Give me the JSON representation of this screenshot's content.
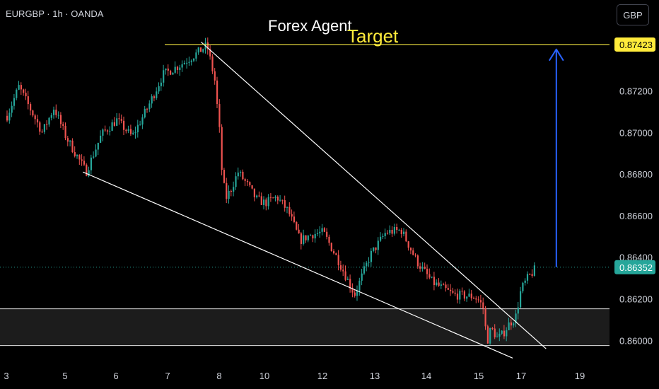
{
  "header": {
    "symbol_info": "EURGBP · 1h · OANDA",
    "currency_button": "GBP"
  },
  "annotations": {
    "brand_text": "Forex Agent",
    "target_text": "Target"
  },
  "colors": {
    "background": "#000000",
    "up_candle": "#26a69a",
    "down_candle": "#ef5350",
    "trendline": "#ffffff",
    "target_line": "#f5e642",
    "target_arrow": "#2962ff",
    "label_target_bg": "#ffeb3b",
    "label_price_bg": "#26a69a"
  },
  "chart_data": {
    "type": "candlestick",
    "title": "",
    "symbol": "EURGBP",
    "timeframe": "1h",
    "source": "OANDA",
    "y_unit": "GBP",
    "y_ticks": [
      0.86,
      0.862,
      0.864,
      0.866,
      0.868,
      0.87,
      0.872
    ],
    "y_tick_labels": [
      "0.86000",
      "0.86200",
      "0.86400",
      "0.86600",
      "0.86800",
      "0.87000",
      "0.87200"
    ],
    "x_tick_labels": [
      "3",
      "5",
      "6",
      "7",
      "8",
      "10",
      "12",
      "13",
      "14",
      "15",
      "17",
      "19"
    ],
    "ylim": [
      0.8588,
      0.8755
    ],
    "current_price": 0.86352,
    "current_price_label": "0.86352",
    "target_price": 0.87423,
    "target_price_label": "0.87423",
    "support_zone": {
      "low": 0.85975,
      "high": 0.86152
    },
    "price_path": [
      {
        "x": 3.0,
        "price": 0.8708
      },
      {
        "x": 3.4,
        "price": 0.8722
      },
      {
        "x": 3.8,
        "price": 0.8711
      },
      {
        "x": 4.2,
        "price": 0.87
      },
      {
        "x": 4.6,
        "price": 0.8712
      },
      {
        "x": 5.0,
        "price": 0.8698
      },
      {
        "x": 5.4,
        "price": 0.8681
      },
      {
        "x": 5.7,
        "price": 0.8699
      },
      {
        "x": 6.0,
        "price": 0.8706
      },
      {
        "x": 6.3,
        "price": 0.8698
      },
      {
        "x": 6.6,
        "price": 0.8712
      },
      {
        "x": 6.9,
        "price": 0.8728
      },
      {
        "x": 7.2,
        "price": 0.8732
      },
      {
        "x": 7.55,
        "price": 0.8738
      },
      {
        "x": 7.75,
        "price": 0.8742
      },
      {
        "x": 7.9,
        "price": 0.8725
      },
      {
        "x": 8.05,
        "price": 0.8685
      },
      {
        "x": 8.25,
        "price": 0.8668
      },
      {
        "x": 8.5,
        "price": 0.8673
      },
      {
        "x": 8.8,
        "price": 0.8681
      },
      {
        "x": 9.2,
        "price": 0.8675
      },
      {
        "x": 9.6,
        "price": 0.8668
      },
      {
        "x": 10.0,
        "price": 0.8666
      },
      {
        "x": 10.4,
        "price": 0.8669
      },
      {
        "x": 10.8,
        "price": 0.8662
      },
      {
        "x": 11.2,
        "price": 0.8648
      },
      {
        "x": 11.6,
        "price": 0.8651
      },
      {
        "x": 12.0,
        "price": 0.8652
      },
      {
        "x": 12.3,
        "price": 0.8638
      },
      {
        "x": 12.6,
        "price": 0.8622
      },
      {
        "x": 12.9,
        "price": 0.8641
      },
      {
        "x": 13.2,
        "price": 0.8652
      },
      {
        "x": 13.5,
        "price": 0.8653
      },
      {
        "x": 13.8,
        "price": 0.8638
      },
      {
        "x": 14.1,
        "price": 0.8628
      },
      {
        "x": 14.5,
        "price": 0.8622
      },
      {
        "x": 14.9,
        "price": 0.8621
      },
      {
        "x": 15.2,
        "price": 0.8615
      },
      {
        "x": 15.35,
        "price": 0.8599
      },
      {
        "x": 15.55,
        "price": 0.8606
      },
      {
        "x": 15.85,
        "price": 0.8601
      },
      {
        "x": 16.1,
        "price": 0.8603
      },
      {
        "x": 16.4,
        "price": 0.8608
      },
      {
        "x": 16.7,
        "price": 0.8611
      },
      {
        "x": 16.95,
        "price": 0.8624
      },
      {
        "x": 17.2,
        "price": 0.863
      },
      {
        "x": 17.5,
        "price": 0.8635
      }
    ],
    "trendlines": [
      {
        "name": "wedge-upper",
        "from": {
          "x": 7.65,
          "price": 0.87435
        },
        "to": {
          "x": 17.85,
          "price": 0.8596
        }
      },
      {
        "name": "wedge-lower",
        "from": {
          "x": 5.35,
          "price": 0.8681
        },
        "to": {
          "x": 16.6,
          "price": 0.85915
        }
      }
    ],
    "target_arrow": {
      "x": 18.2,
      "from_price": 0.86352,
      "to_price": 0.874
    },
    "grid": false,
    "legend": "none"
  }
}
